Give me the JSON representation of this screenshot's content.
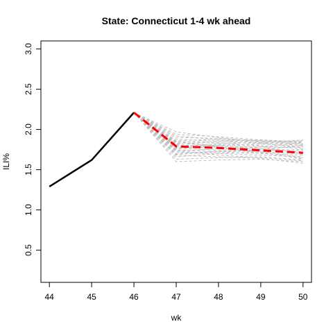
{
  "chart_data": {
    "type": "line",
    "title": "State: Connecticut 1-4 wk ahead",
    "xlabel": "wk",
    "ylabel": "ILI%",
    "xlim": [
      43.8,
      50.2
    ],
    "ylim": [
      0.1,
      3.1
    ],
    "x_ticks": [
      "44",
      "45",
      "46",
      "47",
      "48",
      "49",
      "50"
    ],
    "y_ticks": [
      "0.5",
      "1.0",
      "1.5",
      "2.0",
      "2.5",
      "3.0"
    ],
    "grid": false,
    "legend": "none",
    "observed": {
      "x": [
        44,
        45,
        46
      ],
      "y": [
        1.29,
        1.62,
        2.21
      ],
      "color": "#000000"
    },
    "forecast_mean": {
      "x": [
        46,
        47,
        48,
        49,
        50
      ],
      "y": [
        2.21,
        1.79,
        1.77,
        1.74,
        1.71
      ],
      "color": "#ff0000"
    },
    "ensemble": {
      "color": "#bebebe",
      "x": [
        46,
        47,
        48,
        49,
        50
      ],
      "runs": [
        [
          2.21,
          1.6,
          1.62,
          1.63,
          1.6
        ],
        [
          2.21,
          1.63,
          1.65,
          1.66,
          1.62
        ],
        [
          2.21,
          1.66,
          1.7,
          1.72,
          1.63
        ],
        [
          2.21,
          1.68,
          1.66,
          1.64,
          1.58
        ],
        [
          2.21,
          1.7,
          1.73,
          1.75,
          1.8
        ],
        [
          2.21,
          1.72,
          1.7,
          1.68,
          1.66
        ],
        [
          2.21,
          1.73,
          1.76,
          1.78,
          1.84
        ],
        [
          2.21,
          1.75,
          1.72,
          1.7,
          1.68
        ],
        [
          2.21,
          1.76,
          1.8,
          1.82,
          1.86
        ],
        [
          2.21,
          1.77,
          1.74,
          1.72,
          1.7
        ],
        [
          2.21,
          1.78,
          1.78,
          1.76,
          1.74
        ],
        [
          2.21,
          1.79,
          1.82,
          1.84,
          1.87
        ],
        [
          2.21,
          1.8,
          1.76,
          1.73,
          1.65
        ],
        [
          2.21,
          1.81,
          1.79,
          1.78,
          1.78
        ],
        [
          2.21,
          1.82,
          1.84,
          1.86,
          1.84
        ],
        [
          2.21,
          1.83,
          1.8,
          1.76,
          1.72
        ],
        [
          2.21,
          1.84,
          1.86,
          1.87,
          1.83
        ],
        [
          2.21,
          1.85,
          1.83,
          1.8,
          1.76
        ],
        [
          2.21,
          1.86,
          1.88,
          1.85,
          1.81
        ],
        [
          2.21,
          1.88,
          1.85,
          1.82,
          1.79
        ],
        [
          2.21,
          1.9,
          1.89,
          1.86,
          1.82
        ],
        [
          2.21,
          1.92,
          1.87,
          1.83,
          1.77
        ],
        [
          2.21,
          1.94,
          1.91,
          1.87,
          1.85
        ],
        [
          2.21,
          1.97,
          1.9,
          1.84,
          1.8
        ],
        [
          2.21,
          1.74,
          1.68,
          1.65,
          1.61
        ],
        [
          2.21,
          1.69,
          1.72,
          1.74,
          1.75
        ],
        [
          2.21,
          1.77,
          1.81,
          1.79,
          1.69
        ],
        [
          2.21,
          1.85,
          1.78,
          1.71,
          1.64
        ]
      ]
    }
  }
}
